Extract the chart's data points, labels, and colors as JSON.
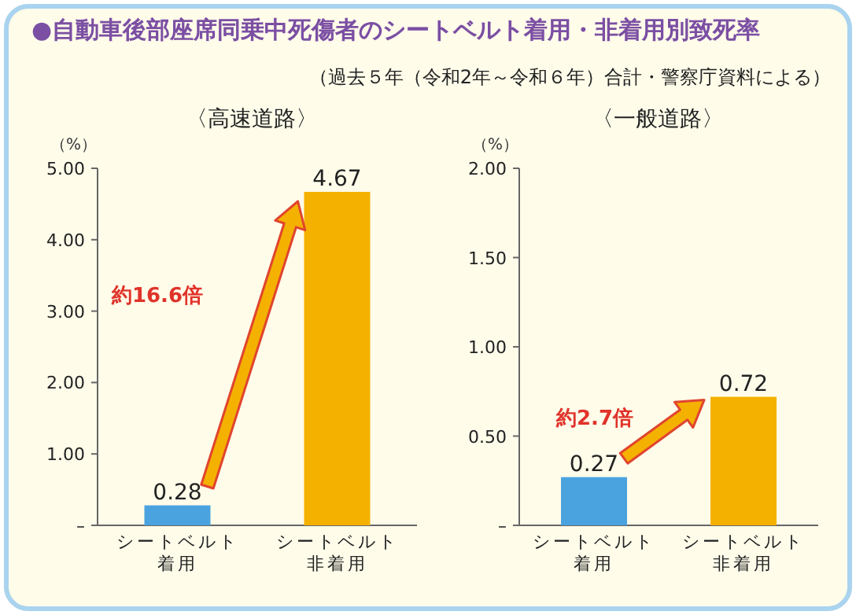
{
  "chart_data": [
    {
      "type": "bar",
      "title": "〈高速道路〉",
      "ylabel": "（%）",
      "categories": [
        "シートベルト着用",
        "シートベルト非着用"
      ],
      "values": [
        0.28,
        4.67
      ],
      "colors": [
        "#4aa3df",
        "#f5b100"
      ],
      "ylim": [
        0,
        5
      ],
      "yticks": [
        {
          "value": 0,
          "label": "–"
        },
        {
          "value": 1,
          "label": "1.00"
        },
        {
          "value": 2,
          "label": "2.00"
        },
        {
          "value": 3,
          "label": "3.00"
        },
        {
          "value": 4,
          "label": "4.00"
        },
        {
          "value": 5,
          "label": "5.00"
        }
      ],
      "data_labels": true,
      "annotations": [
        "●自動車後部座席同乗中死傷者のシートベルト着用・非着用別致死率",
        "（過去５年（令和2年～令和６年）合計・警察庁資料による）",
        "約16.6倍"
      ]
    },
    {
      "type": "bar",
      "title": "〈一般道路〉",
      "ylabel": "（%）",
      "categories": [
        "シートベルト着用",
        "シートベルト非着用"
      ],
      "values": [
        0.27,
        0.72
      ],
      "colors": [
        "#4aa3df",
        "#f5b100"
      ],
      "ylim": [
        0,
        2
      ],
      "yticks": [
        {
          "value": 0,
          "label": "–"
        },
        {
          "value": 0.5,
          "label": "0.50"
        },
        {
          "value": 1,
          "label": "1.00"
        },
        {
          "value": 1.5,
          "label": "1.50"
        },
        {
          "value": 2,
          "label": "2.00"
        }
      ],
      "data_labels": true,
      "annotations": [
        "約2.7倍"
      ]
    }
  ]
}
